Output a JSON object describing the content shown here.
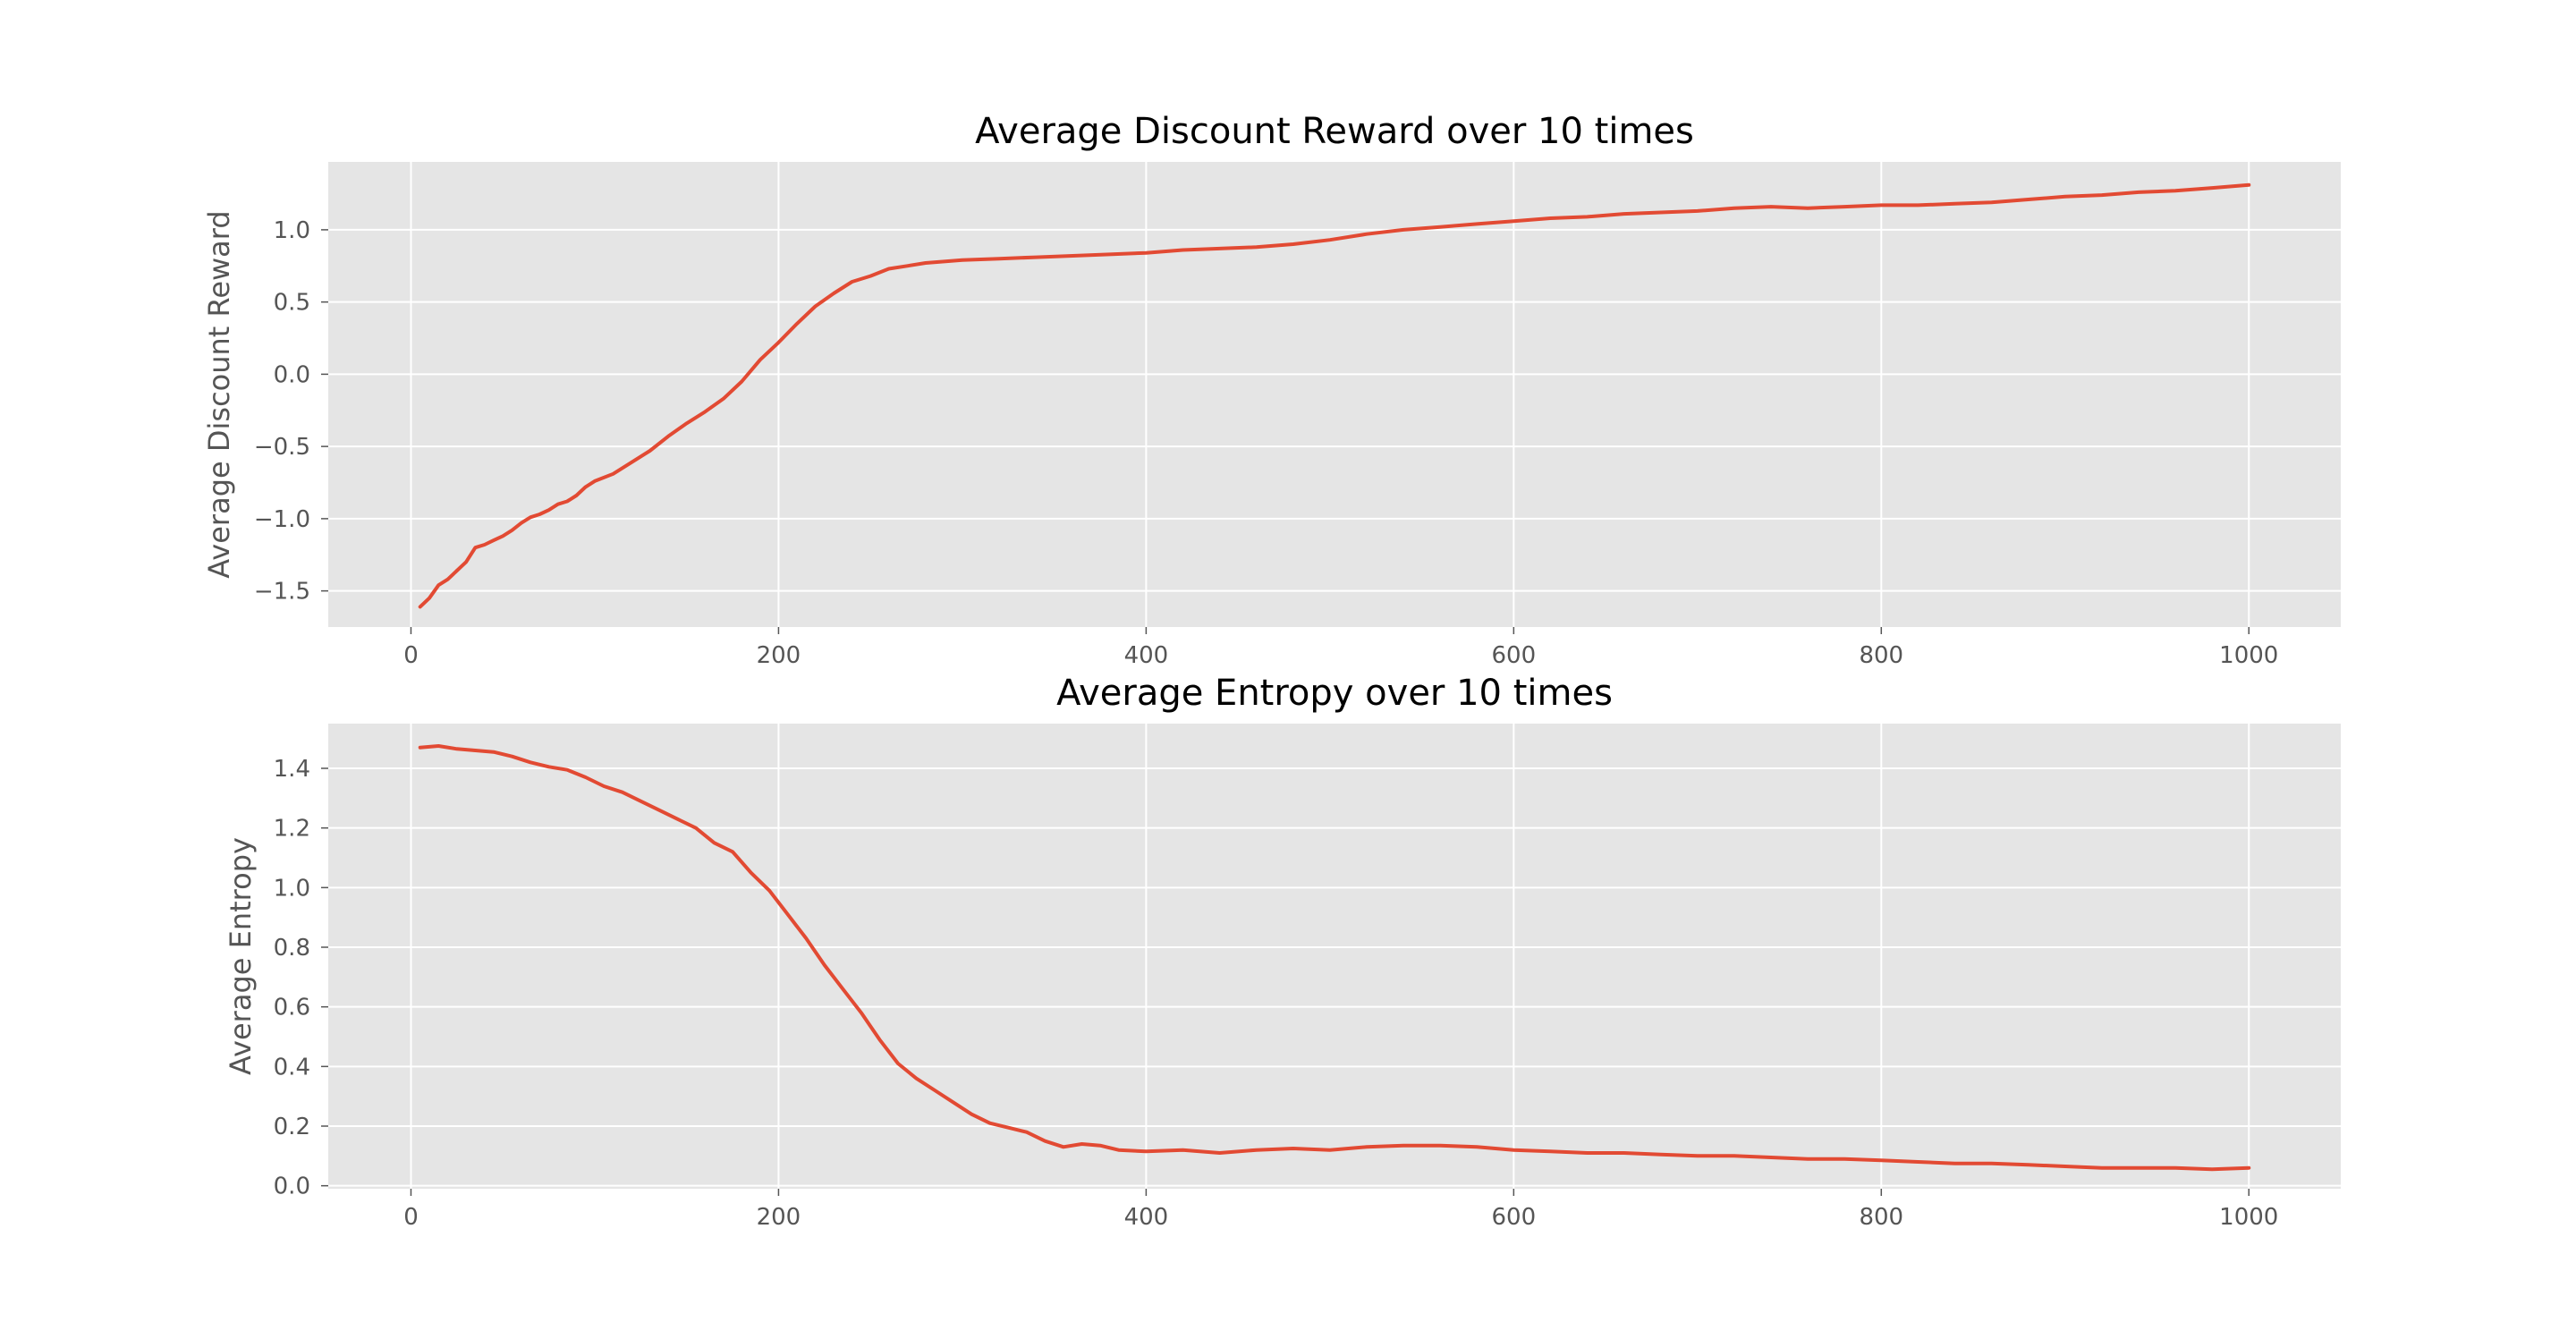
{
  "colors": {
    "axes_background": "#E5E5E5",
    "grid": "#FFFFFF",
    "line": "#E24A33",
    "tick_text": "#555555",
    "title_text": "#000000"
  },
  "chart_data": [
    {
      "type": "line",
      "title": "Average Discount Reward over 10 times",
      "xlabel": "",
      "ylabel": "Average Discount Reward",
      "xlim": [
        -45,
        1050
      ],
      "ylim": [
        -1.75,
        1.47
      ],
      "grid": true,
      "x_ticks": [
        0,
        200,
        400,
        600,
        800,
        1000
      ],
      "x_tick_labels": [
        "0",
        "200",
        "400",
        "600",
        "800",
        "1000"
      ],
      "y_ticks": [
        -1.5,
        -1.0,
        -0.5,
        0.0,
        0.5,
        1.0
      ],
      "y_tick_labels": [
        "−1.5",
        "−1.0",
        "−0.5",
        "0.0",
        "0.5",
        "1.0"
      ],
      "series": [
        {
          "x": [
            5,
            10,
            15,
            20,
            25,
            30,
            35,
            40,
            45,
            50,
            55,
            60,
            65,
            70,
            75,
            80,
            85,
            90,
            95,
            100,
            110,
            120,
            130,
            140,
            150,
            160,
            170,
            180,
            190,
            200,
            210,
            220,
            230,
            240,
            250,
            260,
            270,
            280,
            290,
            300,
            320,
            340,
            360,
            380,
            400,
            420,
            440,
            460,
            480,
            500,
            520,
            540,
            560,
            580,
            600,
            620,
            640,
            660,
            680,
            700,
            720,
            740,
            760,
            780,
            800,
            820,
            840,
            860,
            880,
            900,
            920,
            940,
            960,
            980,
            1000
          ],
          "y": [
            -1.61,
            -1.55,
            -1.46,
            -1.42,
            -1.36,
            -1.3,
            -1.2,
            -1.18,
            -1.15,
            -1.12,
            -1.08,
            -1.03,
            -0.99,
            -0.97,
            -0.94,
            -0.9,
            -0.88,
            -0.84,
            -0.78,
            -0.74,
            -0.69,
            -0.61,
            -0.53,
            -0.43,
            -0.34,
            -0.26,
            -0.17,
            -0.05,
            0.1,
            0.22,
            0.35,
            0.47,
            0.56,
            0.64,
            0.68,
            0.73,
            0.75,
            0.77,
            0.78,
            0.79,
            0.8,
            0.81,
            0.82,
            0.83,
            0.84,
            0.86,
            0.87,
            0.88,
            0.9,
            0.93,
            0.97,
            1.0,
            1.02,
            1.04,
            1.06,
            1.08,
            1.09,
            1.11,
            1.12,
            1.13,
            1.15,
            1.16,
            1.15,
            1.16,
            1.17,
            1.17,
            1.18,
            1.19,
            1.21,
            1.23,
            1.24,
            1.26,
            1.27,
            1.29,
            1.31
          ]
        }
      ]
    },
    {
      "type": "line",
      "title": "Average Entropy over 10 times",
      "xlabel": "",
      "ylabel": "Average Entropy",
      "xlim": [
        -45,
        1050
      ],
      "ylim": [
        -0.01,
        1.55
      ],
      "grid": true,
      "x_ticks": [
        0,
        200,
        400,
        600,
        800,
        1000
      ],
      "x_tick_labels": [
        "0",
        "200",
        "400",
        "600",
        "800",
        "1000"
      ],
      "y_ticks": [
        0.0,
        0.2,
        0.4,
        0.6,
        0.8,
        1.0,
        1.2,
        1.4
      ],
      "y_tick_labels": [
        "0.0",
        "0.2",
        "0.4",
        "0.6",
        "0.8",
        "1.0",
        "1.2",
        "1.4"
      ],
      "series": [
        {
          "x": [
            5,
            15,
            25,
            35,
            45,
            55,
            65,
            75,
            85,
            95,
            105,
            115,
            125,
            135,
            145,
            155,
            165,
            175,
            185,
            195,
            205,
            215,
            225,
            235,
            245,
            255,
            265,
            275,
            285,
            295,
            305,
            315,
            325,
            335,
            345,
            355,
            365,
            375,
            385,
            400,
            420,
            440,
            460,
            480,
            500,
            520,
            540,
            560,
            580,
            600,
            620,
            640,
            660,
            680,
            700,
            720,
            740,
            760,
            780,
            800,
            820,
            840,
            860,
            880,
            900,
            920,
            940,
            960,
            980,
            1000
          ],
          "y": [
            1.47,
            1.475,
            1.465,
            1.46,
            1.455,
            1.44,
            1.42,
            1.405,
            1.395,
            1.37,
            1.34,
            1.32,
            1.29,
            1.26,
            1.23,
            1.2,
            1.15,
            1.12,
            1.05,
            0.99,
            0.91,
            0.83,
            0.74,
            0.66,
            0.58,
            0.49,
            0.41,
            0.36,
            0.32,
            0.28,
            0.24,
            0.21,
            0.195,
            0.18,
            0.15,
            0.13,
            0.14,
            0.135,
            0.12,
            0.115,
            0.12,
            0.11,
            0.12,
            0.125,
            0.12,
            0.13,
            0.135,
            0.135,
            0.13,
            0.12,
            0.115,
            0.11,
            0.11,
            0.105,
            0.1,
            0.1,
            0.095,
            0.09,
            0.09,
            0.085,
            0.08,
            0.075,
            0.075,
            0.07,
            0.065,
            0.06,
            0.06,
            0.06,
            0.055,
            0.06
          ]
        }
      ]
    }
  ]
}
